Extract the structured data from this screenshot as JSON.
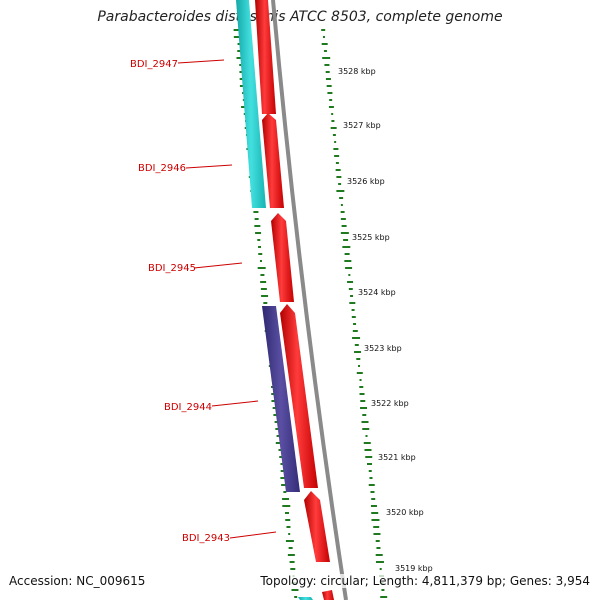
{
  "title": "Parabacteroides distasonis ATCC 8503, complete genome",
  "footer": {
    "accession": "Accession: NC_009615",
    "summary": "Topology: circular; Length: 4,811,379 bp; Genes: 3,954"
  },
  "colors": {
    "forward_gene": "#ee1111",
    "cds_cyan": "#22cccc",
    "cds_purple": "#4a3f8f",
    "backbone": "#888888",
    "gc_ticks": "#1f7a1f",
    "label": "#cc0000"
  },
  "gene_labels": [
    "BDI_2947",
    "BDI_2946",
    "BDI_2945",
    "BDI_2944",
    "BDI_2943"
  ],
  "scale_ticks": [
    "3528 kbp",
    "3527 kbp",
    "3526 kbp",
    "3525 kbp",
    "3524 kbp",
    "3523 kbp",
    "3522 kbp",
    "3521 kbp",
    "3520 kbp",
    "3519 kbp"
  ]
}
